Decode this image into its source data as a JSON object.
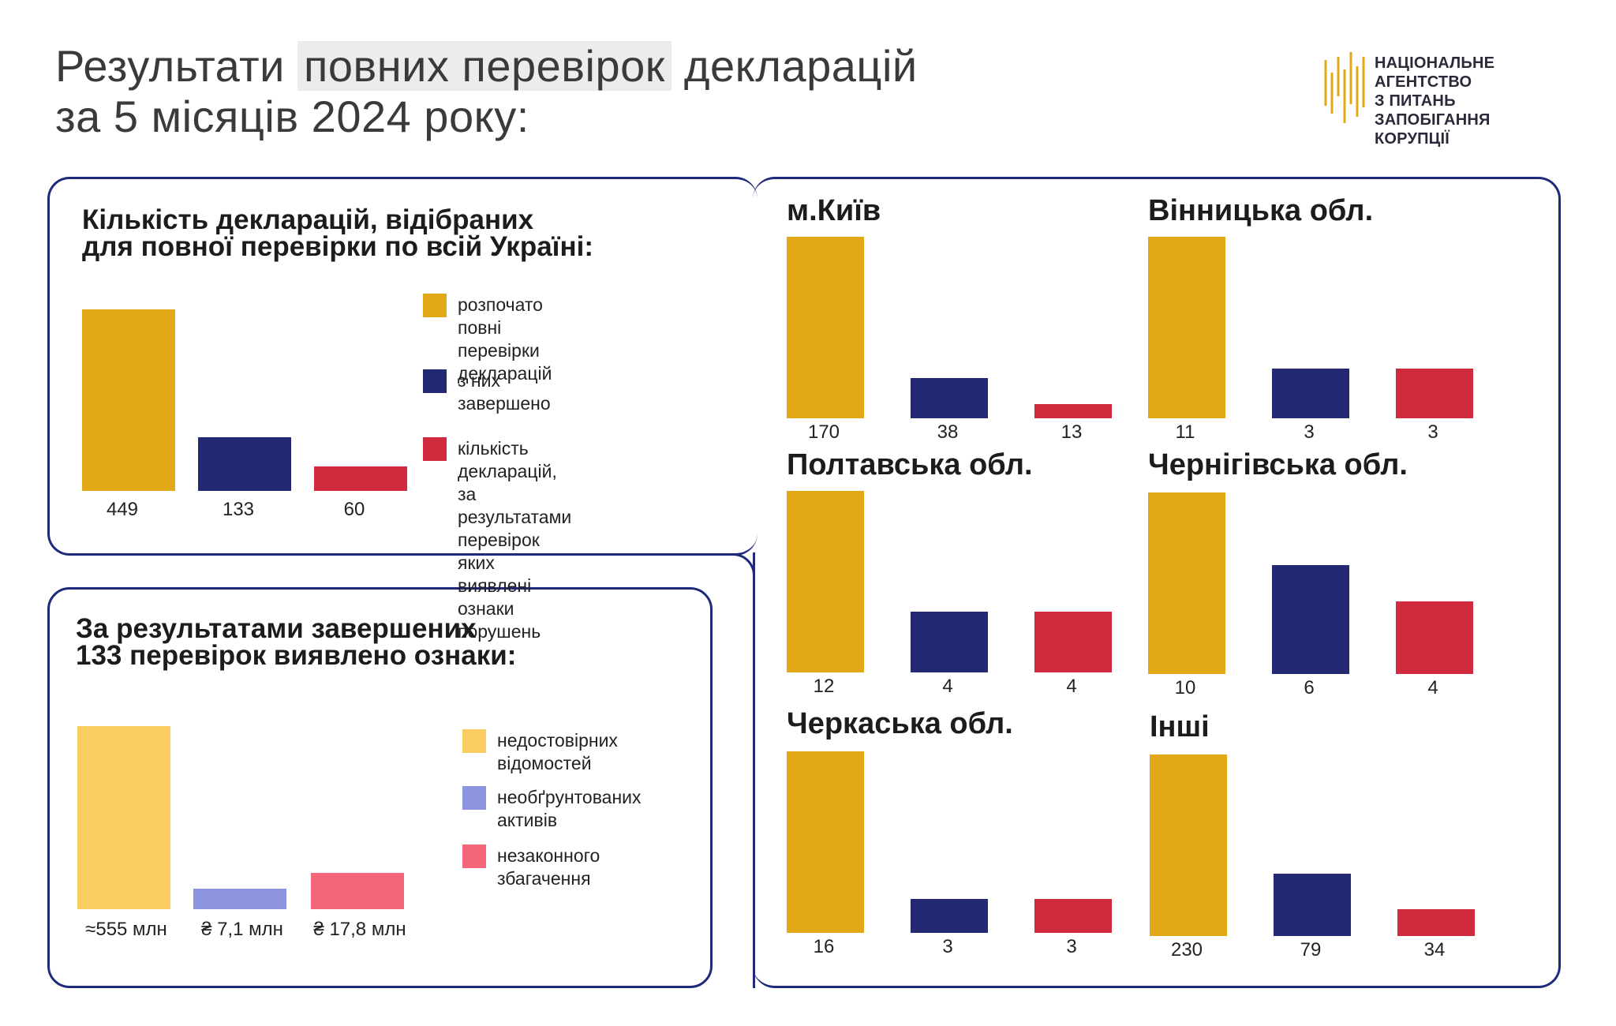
{
  "header": {
    "title_part1": "Результати ",
    "title_highlight": "повних перевірок",
    "title_part2": " декларацій",
    "title_line2": "за 5 місяців 2024 року:"
  },
  "logo": {
    "line1": "НАЦІОНАЛЬНЕ АГЕНТСТВО",
    "line2": "З ПИТАНЬ ЗАПОБІГАННЯ",
    "line3": "КОРУПЦІЇ"
  },
  "colors": {
    "gold": "#E2A817",
    "navy": "#232A72",
    "red": "#CF2A3E",
    "light_gold": "#FACD62",
    "lavender": "#8E95E0",
    "pink": "#F4667A"
  },
  "chart_data": [
    {
      "type": "bar",
      "title_line1": "Кількість декларацій, відібраних",
      "title_line2": "для повної перевірки по всій Україні:",
      "categories": [
        "розпочато повні перевірки декларацій",
        "з них завершено",
        "кількість декларацій, за результатами перевірок яких виявлені ознаки порушень"
      ],
      "values": [
        449,
        133,
        60
      ],
      "labels": [
        "449",
        "133",
        "60"
      ],
      "legend": [
        {
          "line1": "розпочато повні",
          "line2": "перевірки декларацій",
          "line3": "",
          "line4": ""
        },
        {
          "line1": "з них завершено",
          "line2": "",
          "line3": "",
          "line4": ""
        },
        {
          "line1": "кількість декларацій, за",
          "line2": "результатами перевірок",
          "line3": "яких виявлені ознаки",
          "line4": "порушень"
        }
      ]
    },
    {
      "type": "bar",
      "title_line1": "За результатами завершених",
      "title_line2": "133 перевірок виявлено ознаки:",
      "categories": [
        "недостовірних відомостей",
        "необґрунтованих активів",
        "незаконного збагачення"
      ],
      "values": [
        555,
        7.1,
        17.8
      ],
      "labels": [
        "≈555 млн",
        "₴ 7,1 млн",
        "₴ 17,8 млн"
      ],
      "legend": [
        {
          "line1": "недостовірних",
          "line2": "відомостей"
        },
        {
          "line1": "необґрунтованих",
          "line2": "активів"
        },
        {
          "line1": "незаконного",
          "line2": "збагачення"
        }
      ]
    }
  ],
  "regions": [
    {
      "name": "м.Київ",
      "values": [
        170,
        38,
        13
      ]
    },
    {
      "name": "Вінницька обл.",
      "values": [
        11,
        3,
        3
      ]
    },
    {
      "name": "Полтавська обл.",
      "values": [
        12,
        4,
        4
      ]
    },
    {
      "name": "Чернігівська обл.",
      "values": [
        10,
        6,
        4
      ]
    },
    {
      "name": "Черкаська обл.",
      "values": [
        16,
        3,
        3
      ]
    },
    {
      "name": "Інші",
      "values": [
        230,
        79,
        34
      ]
    }
  ]
}
